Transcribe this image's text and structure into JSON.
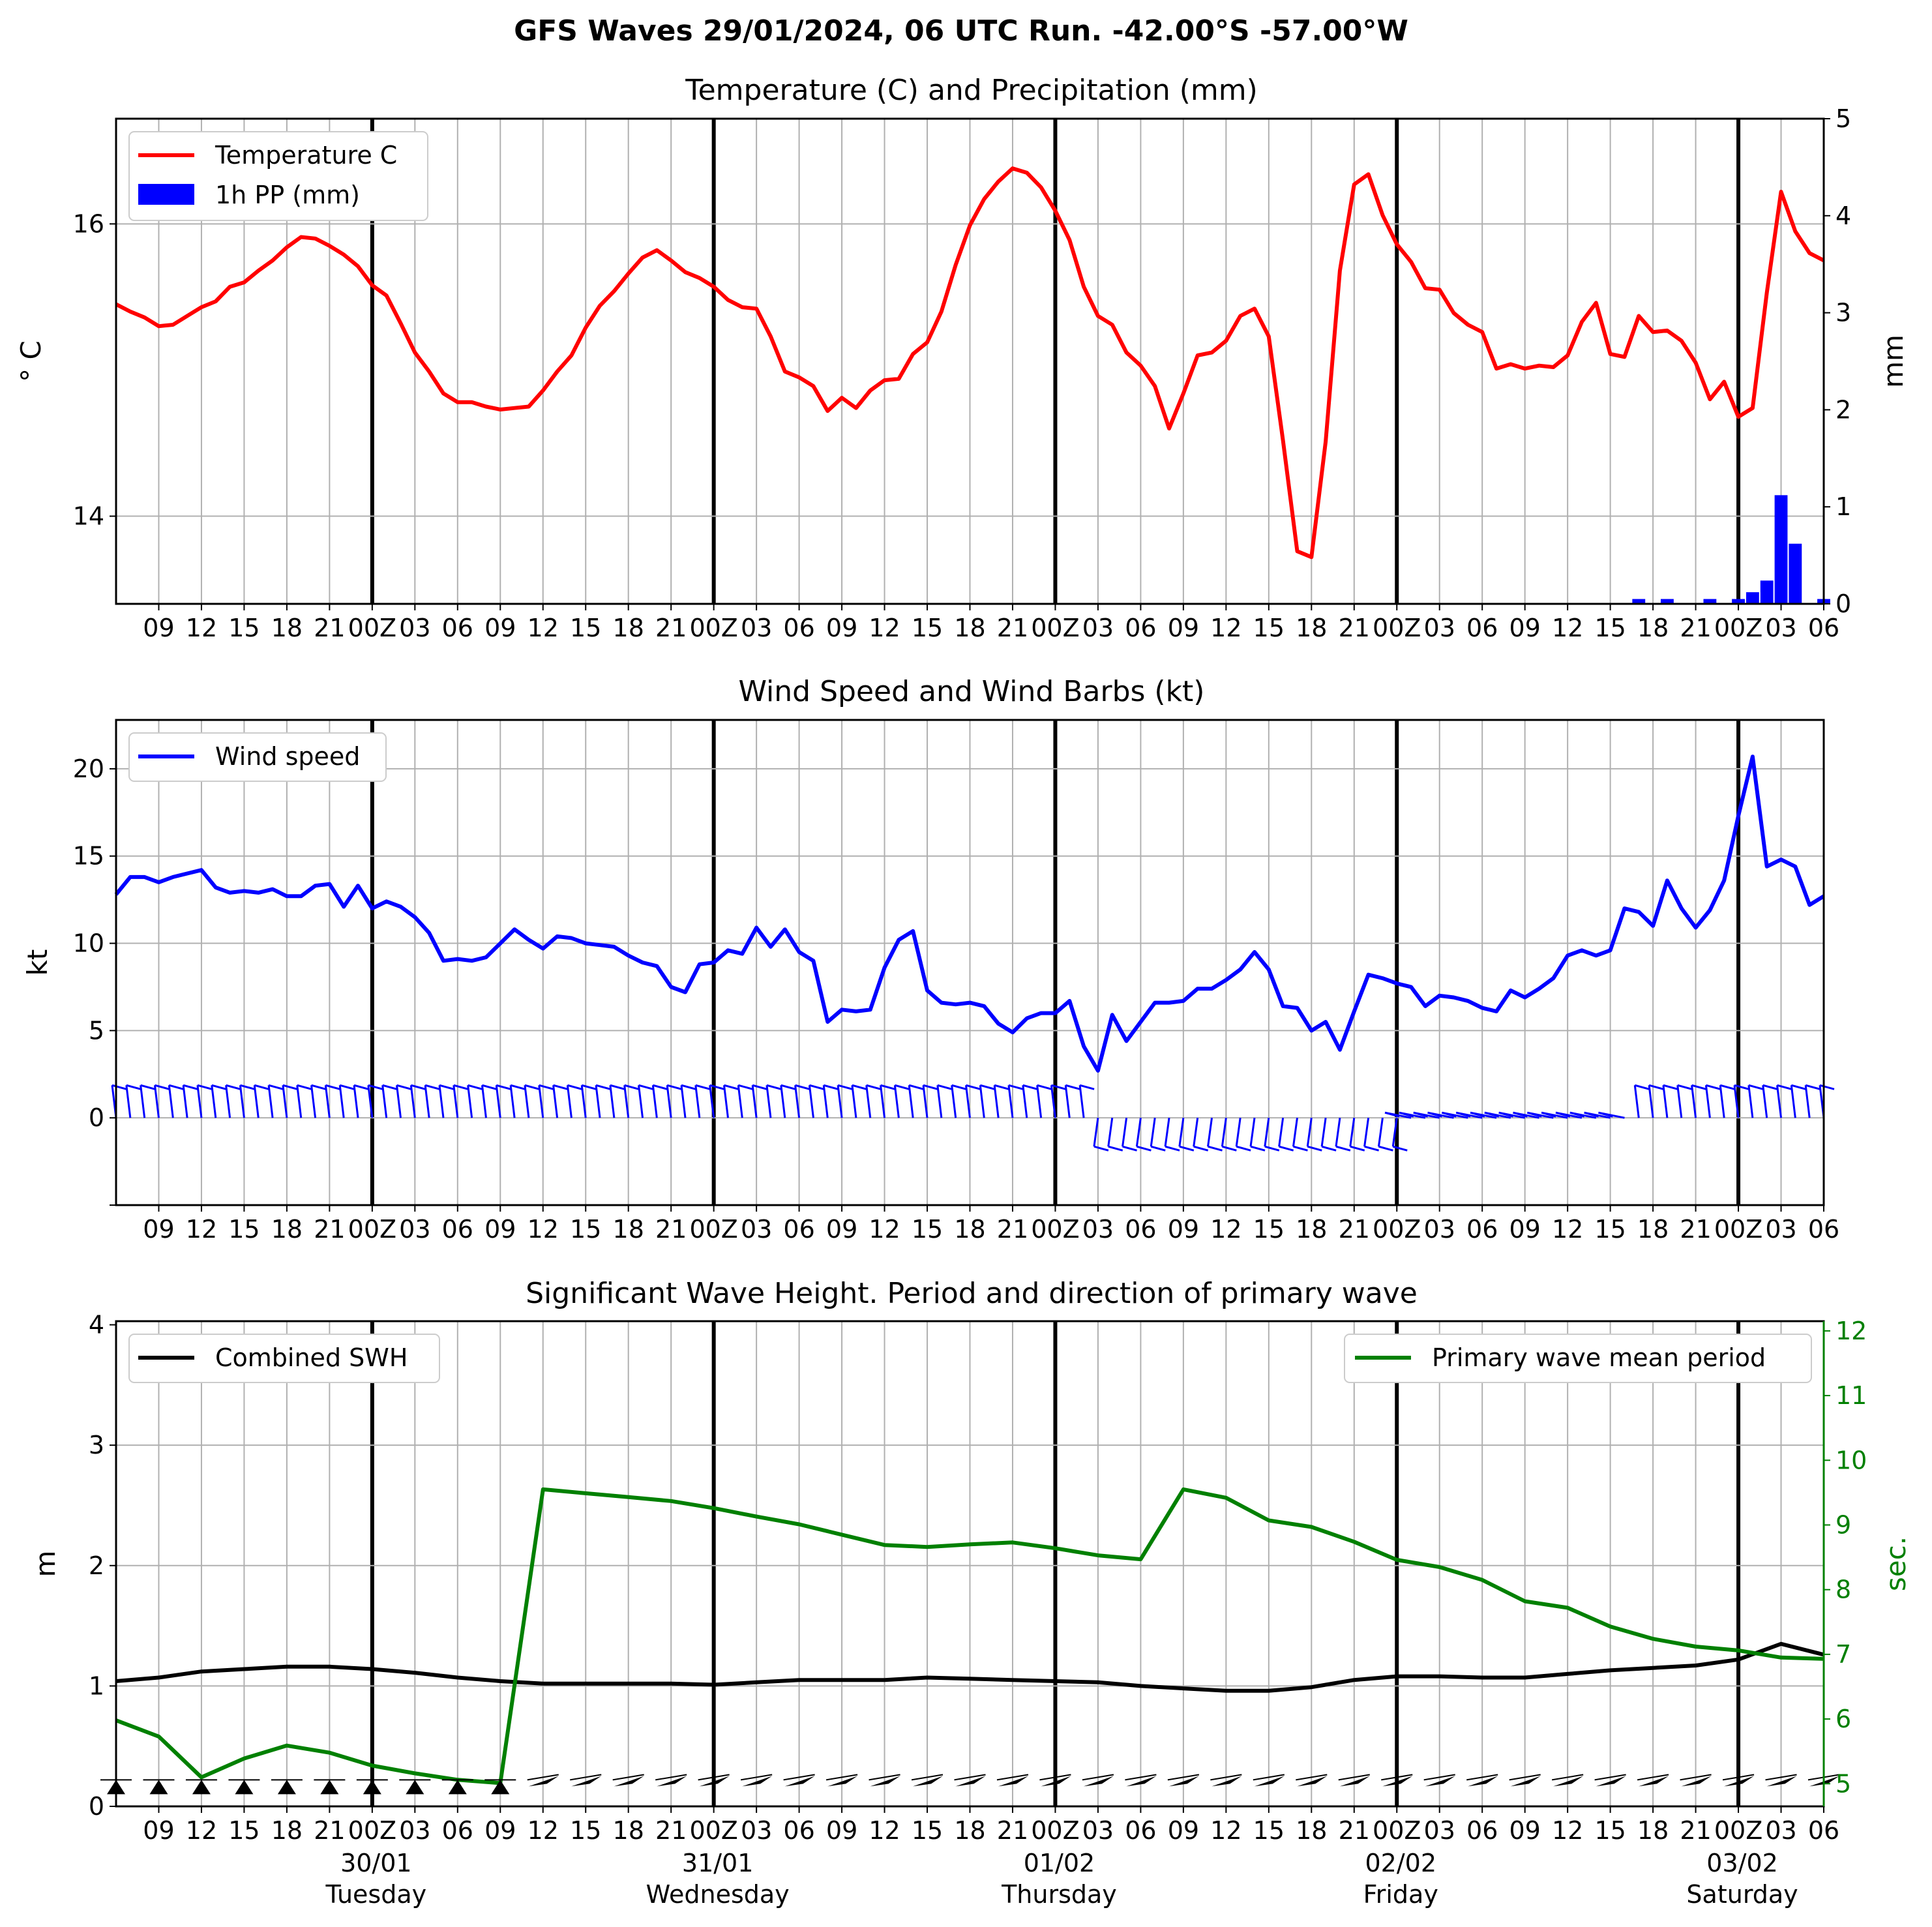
{
  "title": "GFS Waves 29/01/2024, 06 UTC Run. -42.00°S -57.00°W",
  "colors": {
    "temperature": "#ff0000",
    "precip": "#0000ff",
    "wind": "#0000ff",
    "swh": "#000000",
    "period": "#008000"
  },
  "x_ticks": [
    "09",
    "12",
    "15",
    "18",
    "21",
    "00Z",
    "03",
    "06",
    "09",
    "12",
    "15",
    "18",
    "21",
    "00Z",
    "03",
    "06",
    "09",
    "12",
    "15",
    "18",
    "21",
    "00Z",
    "03",
    "06",
    "09",
    "12",
    "15",
    "18",
    "21",
    "00Z",
    "03",
    "06",
    "09",
    "12",
    "15",
    "18",
    "21",
    "00Z",
    "03",
    "06"
  ],
  "day_labels": [
    {
      "date": "30/01",
      "weekday": "Tuesday"
    },
    {
      "date": "31/01",
      "weekday": "Wednesday"
    },
    {
      "date": "01/02",
      "weekday": "Thursday"
    },
    {
      "date": "02/02",
      "weekday": "Friday"
    },
    {
      "date": "03/02",
      "weekday": "Saturday"
    }
  ],
  "chart_data": [
    {
      "type": "line",
      "title": "Temperature (C) and Precipitation (mm)",
      "x_range_hours_from_run": [
        0,
        120
      ],
      "ylabel": "° C",
      "ylabel_right": "mm",
      "ylim": [
        13.4,
        16.72
      ],
      "ylim_right": [
        0,
        5
      ],
      "yticks": [
        "14",
        "16"
      ],
      "yticks_right": [
        "0",
        "1",
        "2",
        "3",
        "4",
        "5"
      ],
      "legend": [
        "Temperature C",
        "1h PP (mm)"
      ],
      "legend_position": "upper left",
      "grid": true,
      "series": [
        {
          "name": "Temperature C",
          "x": [
            0,
            1,
            2,
            3,
            4,
            5,
            6,
            7,
            8,
            9,
            10,
            11,
            12,
            13,
            14,
            15,
            16,
            17,
            18,
            19,
            20,
            21,
            22,
            23,
            24,
            25,
            26,
            27,
            28,
            29,
            30,
            31,
            32,
            33,
            34,
            35,
            36,
            37,
            38,
            39,
            40,
            41,
            42,
            43,
            44,
            45,
            46,
            47,
            48,
            49,
            50,
            51,
            52,
            53,
            54,
            55,
            56,
            57,
            58,
            59,
            60,
            61,
            62,
            63,
            64,
            65,
            66,
            67,
            68,
            69,
            70,
            71,
            72,
            73,
            74,
            75,
            76,
            77,
            78,
            79,
            80,
            81,
            82,
            83,
            84,
            85,
            86,
            87,
            88,
            89,
            90,
            91,
            92,
            93,
            94,
            95,
            96,
            97,
            98,
            99,
            100,
            101,
            102,
            103,
            104,
            105,
            106,
            107,
            108,
            109,
            110,
            111,
            112,
            113,
            114,
            115,
            116,
            117,
            118,
            119,
            120
          ],
          "values": [
            15.45,
            15.4,
            15.36,
            15.3,
            15.31,
            15.37,
            15.43,
            15.47,
            15.57,
            15.6,
            15.68,
            15.75,
            15.84,
            15.91,
            15.9,
            15.85,
            15.79,
            15.71,
            15.58,
            15.51,
            15.32,
            15.12,
            14.99,
            14.84,
            14.78,
            14.78,
            14.75,
            14.73,
            14.74,
            14.75,
            14.86,
            14.99,
            15.1,
            15.29,
            15.44,
            15.54,
            15.66,
            15.77,
            15.82,
            15.75,
            15.67,
            15.63,
            15.57,
            15.48,
            15.43,
            15.42,
            15.23,
            14.99,
            14.95,
            14.89,
            14.72,
            14.81,
            14.74,
            14.86,
            14.93,
            14.94,
            15.11,
            15.19,
            15.4,
            15.72,
            15.99,
            16.17,
            16.29,
            16.38,
            16.35,
            16.25,
            16.09,
            15.89,
            15.57,
            15.37,
            15.31,
            15.12,
            15.03,
            14.89,
            14.6,
            14.84,
            15.1,
            15.12,
            15.2,
            15.37,
            15.42,
            15.23,
            14.52,
            13.76,
            13.72,
            14.51,
            15.68,
            16.27,
            16.34,
            16.06,
            15.86,
            15.74,
            15.56,
            15.55,
            15.39,
            15.31,
            15.26,
            15.01,
            15.04,
            15.01,
            15.03,
            15.02,
            15.1,
            15.33,
            15.46,
            15.11,
            15.09,
            15.37,
            15.26,
            15.27,
            15.2,
            15.05,
            14.8,
            14.92,
            14.68,
            14.74,
            15.53,
            16.22,
            15.95,
            15.8,
            15.75
          ]
        },
        {
          "name": "1h PP (mm)",
          "type": "bar",
          "axis": "right",
          "x": [
            107,
            109,
            112,
            114,
            115,
            116,
            117,
            118,
            120
          ],
          "values": [
            0.05,
            0.05,
            0.05,
            0.05,
            0.12,
            0.24,
            1.12,
            0.62,
            0.05
          ]
        }
      ]
    },
    {
      "type": "line",
      "title": "Wind Speed and Wind Barbs (kt)",
      "x_range_hours_from_run": [
        0,
        120
      ],
      "ylabel": "kt",
      "ylim": [
        -5,
        22.8
      ],
      "yticks": [
        "0",
        "5",
        "10",
        "15",
        "20"
      ],
      "legend": [
        "Wind speed"
      ],
      "legend_position": "upper left",
      "grid": true,
      "series": [
        {
          "name": "Wind speed",
          "x": [
            0,
            1,
            2,
            3,
            4,
            5,
            6,
            7,
            8,
            9,
            10,
            11,
            12,
            13,
            14,
            15,
            16,
            17,
            18,
            19,
            20,
            21,
            22,
            23,
            24,
            25,
            26,
            27,
            28,
            29,
            30,
            31,
            32,
            33,
            34,
            35,
            36,
            37,
            38,
            39,
            40,
            41,
            42,
            43,
            44,
            45,
            46,
            47,
            48,
            49,
            50,
            51,
            52,
            53,
            54,
            55,
            56,
            57,
            58,
            59,
            60,
            61,
            62,
            63,
            64,
            65,
            66,
            67,
            68,
            69,
            70,
            71,
            72,
            73,
            74,
            75,
            76,
            77,
            78,
            79,
            80,
            81,
            82,
            83,
            84,
            85,
            86,
            87,
            88,
            89,
            90,
            91,
            92,
            93,
            94,
            95,
            96,
            97,
            98,
            99,
            100,
            101,
            102,
            103,
            104,
            105,
            106,
            107,
            108,
            109,
            110,
            111,
            112,
            113,
            114,
            115,
            116,
            117,
            118,
            119,
            120
          ],
          "values": [
            12.8,
            13.8,
            13.8,
            13.5,
            13.8,
            14.0,
            14.2,
            13.2,
            12.9,
            13.0,
            12.9,
            13.1,
            12.7,
            12.7,
            13.3,
            13.4,
            12.1,
            13.3,
            12.0,
            12.4,
            12.1,
            11.5,
            10.6,
            9.0,
            9.1,
            9.0,
            9.2,
            10.0,
            10.8,
            10.2,
            9.7,
            10.4,
            10.3,
            10.0,
            9.9,
            9.8,
            9.3,
            8.9,
            8.7,
            7.5,
            7.2,
            8.8,
            8.9,
            9.6,
            9.4,
            10.9,
            9.8,
            10.8,
            9.5,
            9.0,
            5.5,
            6.2,
            6.1,
            6.2,
            8.6,
            10.2,
            10.7,
            7.3,
            6.6,
            6.5,
            6.6,
            6.4,
            5.4,
            4.9,
            5.7,
            6.0,
            6.0,
            6.7,
            4.1,
            2.7,
            5.9,
            4.4,
            5.5,
            6.6,
            6.6,
            6.7,
            7.4,
            7.4,
            7.9,
            8.5,
            9.5,
            8.5,
            6.4,
            6.3,
            5.0,
            5.5,
            3.9,
            6.1,
            8.2,
            8.0,
            7.7,
            7.5,
            6.4,
            7.0,
            6.9,
            6.7,
            6.3,
            6.1,
            7.3,
            6.9,
            7.4,
            8.0,
            9.3,
            9.6,
            9.3,
            9.6,
            12.0,
            11.8,
            11.0,
            13.6,
            12.0,
            10.9,
            11.9,
            13.6,
            17.3,
            20.7,
            14.4,
            14.8,
            14.4,
            12.2,
            12.7
          ]
        }
      ]
    },
    {
      "type": "line",
      "title": "Significant Wave Height. Period and direction of primary wave",
      "x_range_hours_from_run": [
        0,
        120
      ],
      "ylabel": "m",
      "ylabel_right": "sec.",
      "ylim": [
        0,
        4.03
      ],
      "ylim_right": [
        4.65,
        12.15
      ],
      "yticks": [
        "0",
        "1",
        "2",
        "3",
        "4"
      ],
      "yticks_right": [
        "5",
        "6",
        "7",
        "8",
        "9",
        "10",
        "11",
        "12"
      ],
      "legend": [
        "Combined SWH",
        "Primary wave mean period"
      ],
      "legend_position": "upper left / upper right",
      "grid": true,
      "series": [
        {
          "name": "Combined SWH",
          "x": [
            0,
            3,
            6,
            9,
            12,
            15,
            18,
            21,
            24,
            27,
            30,
            33,
            36,
            39,
            42,
            45,
            48,
            51,
            54,
            57,
            60,
            63,
            66,
            69,
            72,
            75,
            78,
            81,
            84,
            87,
            90,
            93,
            96,
            99,
            102,
            105,
            108,
            111,
            114,
            117,
            120
          ],
          "values": [
            1.04,
            1.07,
            1.12,
            1.14,
            1.16,
            1.16,
            1.14,
            1.11,
            1.07,
            1.04,
            1.02,
            1.02,
            1.02,
            1.02,
            1.01,
            1.03,
            1.05,
            1.05,
            1.05,
            1.07,
            1.06,
            1.05,
            1.04,
            1.03,
            1.0,
            0.98,
            0.96,
            0.96,
            0.99,
            1.05,
            1.08,
            1.08,
            1.07,
            1.07,
            1.1,
            1.13,
            1.15,
            1.17,
            1.22,
            1.35,
            1.26
          ]
        },
        {
          "name": "Primary wave mean period",
          "axis": "right",
          "x": [
            0,
            3,
            6,
            9,
            12,
            15,
            18,
            21,
            24,
            27,
            30,
            33,
            36,
            39,
            42,
            45,
            48,
            51,
            54,
            57,
            60,
            63,
            66,
            69,
            72,
            75,
            78,
            81,
            84,
            87,
            90,
            93,
            96,
            99,
            102,
            105,
            108,
            111,
            114,
            117,
            120
          ],
          "values": [
            5.98,
            5.73,
            5.1,
            5.39,
            5.59,
            5.48,
            5.28,
            5.16,
            5.06,
            5.01,
            9.55,
            9.49,
            9.43,
            9.37,
            9.26,
            9.13,
            9.01,
            8.85,
            8.69,
            8.66,
            8.7,
            8.73,
            8.64,
            8.53,
            8.47,
            9.55,
            9.42,
            9.07,
            8.97,
            8.74,
            8.46,
            8.35,
            8.15,
            7.82,
            7.72,
            7.43,
            7.24,
            7.12,
            7.06,
            6.95,
            6.93
          ]
        }
      ]
    }
  ]
}
